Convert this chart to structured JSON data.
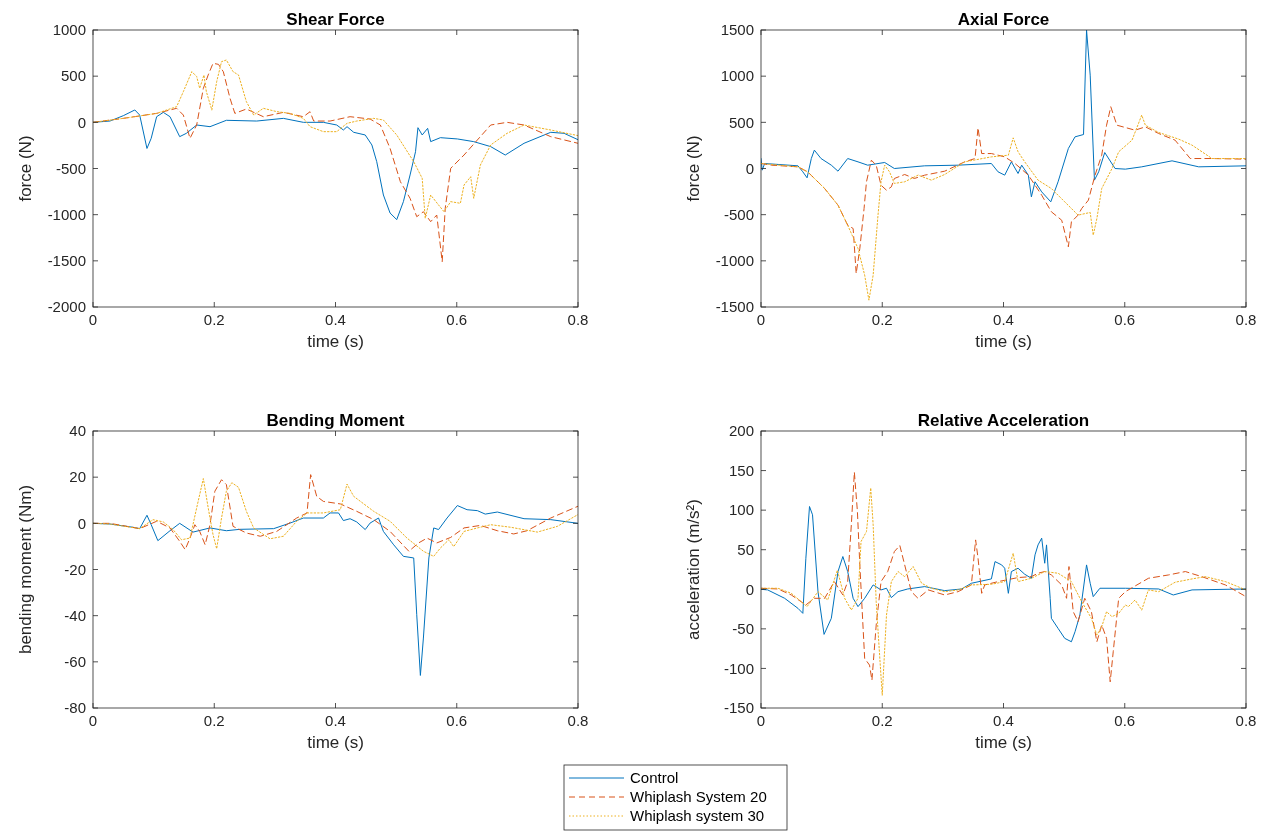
{
  "chart_data": [
    {
      "type": "line",
      "title": "Shear Force",
      "xlabel": "time (s)",
      "ylabel": "force (N)",
      "xlim": [
        0,
        0.8
      ],
      "xticks": [
        0,
        0.2,
        0.4,
        0.6,
        0.8
      ],
      "ylim": [
        -2000,
        1000
      ],
      "yticks": [
        -2000,
        -1500,
        -1000,
        -500,
        0,
        500,
        1000
      ],
      "series": [
        {
          "color": "#0072bd",
          "line_style": "solid",
          "x": [
            0,
            0.028,
            0.05,
            0.069,
            0.077,
            0.089,
            0.096,
            0.105,
            0.116,
            0.127,
            0.143,
            0.154,
            0.171,
            0.193,
            0.22,
            0.27,
            0.314,
            0.347,
            0.38,
            0.402,
            0.413,
            0.419,
            0.43,
            0.449,
            0.46,
            0.468,
            0.479,
            0.49,
            0.501,
            0.512,
            0.523,
            0.532,
            0.536,
            0.543,
            0.552,
            0.557,
            0.573,
            0.601,
            0.628,
            0.656,
            0.68,
            0.711,
            0.755,
            0.777,
            0.8
          ],
          "values": [
            0,
            14,
            72,
            134,
            79,
            -283,
            -173,
            61,
            108,
            61,
            -155,
            -119,
            -29,
            -47,
            22,
            14,
            43,
            0,
            0,
            -29,
            -83,
            -47,
            -108,
            -137,
            -245,
            -426,
            -787,
            -982,
            -1054,
            -859,
            -570,
            -318,
            -58,
            -137,
            -65,
            -209,
            -166,
            -180,
            -209,
            -263,
            -354,
            -227,
            -108,
            -119,
            -188
          ]
        },
        {
          "color": "#d95319",
          "line_style": "dashed",
          "x": [
            0,
            0.05,
            0.105,
            0.138,
            0.149,
            0.16,
            0.171,
            0.182,
            0.19,
            0.198,
            0.207,
            0.215,
            0.226,
            0.234,
            0.253,
            0.281,
            0.314,
            0.347,
            0.358,
            0.364,
            0.391,
            0.424,
            0.457,
            0.474,
            0.49,
            0.507,
            0.523,
            0.534,
            0.545,
            0.557,
            0.567,
            0.576,
            0.581,
            0.59,
            0.612,
            0.634,
            0.656,
            0.683,
            0.711,
            0.755,
            0.8
          ],
          "values": [
            0,
            43,
            97,
            152,
            79,
            -173,
            -29,
            368,
            513,
            639,
            628,
            548,
            260,
            97,
            144,
            61,
            108,
            61,
            115,
            14,
            14,
            61,
            36,
            -29,
            -282,
            -643,
            -823,
            -1022,
            -968,
            -1076,
            -1004,
            -1509,
            -931,
            -498,
            -354,
            -191,
            -29,
            0,
            -29,
            -155,
            -227
          ]
        },
        {
          "color": "#edb120",
          "line_style": "dotted",
          "x": [
            0,
            0.05,
            0.105,
            0.138,
            0.149,
            0.163,
            0.171,
            0.176,
            0.183,
            0.187,
            0.196,
            0.204,
            0.212,
            0.22,
            0.231,
            0.24,
            0.253,
            0.265,
            0.281,
            0.303,
            0.325,
            0.347,
            0.358,
            0.38,
            0.402,
            0.419,
            0.435,
            0.463,
            0.479,
            0.501,
            0.529,
            0.543,
            0.548,
            0.557,
            0.57,
            0.579,
            0.59,
            0.606,
            0.612,
            0.623,
            0.628,
            0.639,
            0.656,
            0.683,
            0.711,
            0.755,
            0.8
          ],
          "values": [
            0,
            43,
            97,
            170,
            332,
            549,
            496,
            368,
            512,
            332,
            134,
            440,
            657,
            675,
            549,
            513,
            224,
            79,
            152,
            116,
            97,
            43,
            -47,
            -101,
            -101,
            -11,
            14,
            43,
            25,
            -137,
            -426,
            -606,
            -1040,
            -787,
            -895,
            -968,
            -859,
            -877,
            -679,
            -589,
            -823,
            -462,
            -245,
            -119,
            -29,
            -83,
            -144
          ]
        }
      ]
    },
    {
      "type": "line",
      "title": "Axial Force",
      "xlabel": "time (s)",
      "ylabel": "force (N)",
      "xlim": [
        0,
        0.8
      ],
      "xticks": [
        0,
        0.2,
        0.4,
        0.6,
        0.8
      ],
      "ylim": [
        -1500,
        1500
      ],
      "yticks": [
        -1500,
        -1000,
        -500,
        0,
        500,
        1000,
        1500
      ],
      "series": [
        {
          "color": "#0072bd",
          "line_style": "solid",
          "x": [
            0,
            0.002,
            0.006,
            0.061,
            0.069,
            0.076,
            0.083,
            0.088,
            0.099,
            0.116,
            0.127,
            0.143,
            0.16,
            0.176,
            0.204,
            0.22,
            0.27,
            0.325,
            0.38,
            0.391,
            0.402,
            0.413,
            0.424,
            0.43,
            0.441,
            0.446,
            0.452,
            0.463,
            0.478,
            0.49,
            0.507,
            0.518,
            0.532,
            0.537,
            0.543,
            0.55,
            0.557,
            0.567,
            0.584,
            0.601,
            0.628,
            0.678,
            0.722,
            0.8
          ],
          "values": [
            108,
            -18,
            54,
            29,
            -36,
            -101,
            108,
            199,
            108,
            36,
            -29,
            108,
            72,
            36,
            65,
            0,
            29,
            36,
            54,
            -36,
            -72,
            72,
            -54,
            36,
            -72,
            -307,
            -144,
            -253,
            -361,
            -144,
            217,
            343,
            368,
            1498,
            1011,
            -126,
            -36,
            173,
            0,
            -7,
            18,
            83,
            18,
            29
          ]
        },
        {
          "color": "#d95319",
          "line_style": "dashed",
          "x": [
            0,
            0.017,
            0.061,
            0.077,
            0.105,
            0.127,
            0.143,
            0.152,
            0.157,
            0.163,
            0.17,
            0.174,
            0.182,
            0.19,
            0.198,
            0.207,
            0.215,
            0.22,
            0.237,
            0.253,
            0.27,
            0.303,
            0.336,
            0.353,
            0.358,
            0.364,
            0.38,
            0.402,
            0.419,
            0.441,
            0.463,
            0.479,
            0.496,
            0.507,
            0.512,
            0.523,
            0.529,
            0.54,
            0.551,
            0.562,
            0.57,
            0.577,
            0.587,
            0.617,
            0.634,
            0.656,
            0.683,
            0.708,
            0.744,
            0.8
          ],
          "values": [
            54,
            36,
            18,
            -36,
            -217,
            -397,
            -614,
            -650,
            -1137,
            -866,
            -433,
            -144,
            90,
            36,
            -181,
            -235,
            -199,
            -108,
            -65,
            -108,
            -72,
            -29,
            72,
            108,
            440,
            162,
            162,
            126,
            54,
            -72,
            -289,
            -469,
            -560,
            -848,
            -578,
            -505,
            -433,
            -343,
            -72,
            144,
            469,
            668,
            469,
            415,
            451,
            379,
            307,
            108,
            108,
            101
          ]
        },
        {
          "color": "#edb120",
          "line_style": "dotted",
          "x": [
            0,
            0.061,
            0.077,
            0.105,
            0.127,
            0.143,
            0.16,
            0.171,
            0.178,
            0.185,
            0.193,
            0.198,
            0.204,
            0.212,
            0.22,
            0.237,
            0.259,
            0.281,
            0.303,
            0.336,
            0.38,
            0.408,
            0.416,
            0.424,
            0.435,
            0.457,
            0.479,
            0.501,
            0.523,
            0.543,
            0.548,
            0.554,
            0.562,
            0.579,
            0.59,
            0.612,
            0.628,
            0.634,
            0.656,
            0.689,
            0.711,
            0.744,
            0.8
          ],
          "values": [
            54,
            18,
            -36,
            -217,
            -397,
            -614,
            -866,
            -1155,
            -1426,
            -1155,
            -505,
            -144,
            36,
            -36,
            -162,
            -144,
            -72,
            -126,
            -65,
            72,
            126,
            144,
            332,
            181,
            72,
            -126,
            -217,
            -361,
            -505,
            -476,
            -722,
            -542,
            -217,
            0,
            181,
            307,
            578,
            469,
            390,
            318,
            253,
            108,
            108
          ]
        }
      ]
    },
    {
      "type": "line",
      "title": "Bending Moment",
      "xlabel": "time (s)",
      "ylabel": "bending moment (Nm)",
      "xlim": [
        0,
        0.8
      ],
      "xticks": [
        0,
        0.2,
        0.4,
        0.6,
        0.8
      ],
      "ylim": [
        -80,
        40
      ],
      "yticks": [
        -80,
        -60,
        -40,
        -20,
        0,
        20,
        40
      ],
      "series": [
        {
          "color": "#0072bd",
          "line_style": "solid",
          "x": [
            0,
            0.028,
            0.066,
            0.077,
            0.089,
            0.096,
            0.107,
            0.127,
            0.143,
            0.165,
            0.193,
            0.22,
            0.242,
            0.298,
            0.325,
            0.347,
            0.38,
            0.391,
            0.405,
            0.413,
            0.424,
            0.435,
            0.449,
            0.457,
            0.471,
            0.479,
            0.496,
            0.512,
            0.529,
            0.534,
            0.54,
            0.545,
            0.554,
            0.562,
            0.57,
            0.584,
            0.601,
            0.617,
            0.634,
            0.647,
            0.667,
            0.711,
            0.755,
            0.8
          ],
          "values": [
            0,
            -0.3,
            -1.7,
            -2.3,
            3.5,
            -0.6,
            -7.5,
            -3.2,
            0,
            -3.8,
            -2,
            -3.2,
            -2.6,
            -2.3,
            0.1,
            2.3,
            2.3,
            4.5,
            4.5,
            1.2,
            2,
            0.6,
            -2.7,
            0.1,
            2.3,
            -3.5,
            -9.3,
            -14.3,
            -15,
            -39.6,
            -65.9,
            -49.7,
            -15,
            -2,
            -2.7,
            2.3,
            7.7,
            5.9,
            5.5,
            4,
            4.9,
            2,
            1.6,
            0
          ]
        },
        {
          "color": "#d95319",
          "line_style": "dashed",
          "x": [
            0,
            0.028,
            0.077,
            0.105,
            0.127,
            0.143,
            0.152,
            0.16,
            0.168,
            0.176,
            0.185,
            0.193,
            0.201,
            0.212,
            0.22,
            0.231,
            0.253,
            0.276,
            0.303,
            0.336,
            0.353,
            0.359,
            0.369,
            0.38,
            0.408,
            0.435,
            0.463,
            0.49,
            0.521,
            0.537,
            0.551,
            0.567,
            0.59,
            0.612,
            0.639,
            0.667,
            0.694,
            0.716,
            0.755,
            0.8
          ],
          "values": [
            0,
            0,
            -2.3,
            0.9,
            -2,
            -7.8,
            -11.4,
            -6.4,
            -0.6,
            -3.5,
            -9.3,
            -0.6,
            13.9,
            18.9,
            16.8,
            -1.3,
            -4.2,
            -5.6,
            -3.5,
            2.3,
            4.5,
            21.1,
            11.7,
            9.5,
            8.4,
            5.2,
            1.6,
            -3.5,
            -12.1,
            -8.5,
            -6.4,
            -8.5,
            -6.1,
            -2,
            -0.9,
            -3.2,
            -4.6,
            -3.2,
            2.3,
            7.4
          ]
        },
        {
          "color": "#edb120",
          "line_style": "dotted",
          "x": [
            0,
            0.028,
            0.077,
            0.099,
            0.116,
            0.132,
            0.146,
            0.16,
            0.171,
            0.182,
            0.19,
            0.198,
            0.204,
            0.212,
            0.22,
            0.229,
            0.24,
            0.253,
            0.265,
            0.292,
            0.314,
            0.336,
            0.353,
            0.38,
            0.408,
            0.419,
            0.43,
            0.463,
            0.49,
            0.518,
            0.545,
            0.562,
            0.573,
            0.587,
            0.595,
            0.612,
            0.634,
            0.656,
            0.689,
            0.733,
            0.766,
            0.8
          ],
          "values": [
            0,
            -0.3,
            -2.3,
            1.6,
            0.6,
            -2.7,
            -7.1,
            -6.4,
            6.7,
            19.4,
            6.7,
            -4.9,
            -11,
            2.3,
            13.9,
            17.6,
            15.6,
            5.2,
            -2,
            -6.7,
            -5.6,
            0.9,
            4.5,
            4.5,
            5.9,
            17,
            11.7,
            5.2,
            0.9,
            -6.4,
            -12.1,
            -14.3,
            -10.7,
            -7.1,
            -10.1,
            -3.5,
            -2,
            -0.6,
            -1.7,
            -3.8,
            -1.3,
            3.8
          ]
        }
      ]
    },
    {
      "type": "line",
      "title": "Relative Acceleration",
      "xlabel": "time (s)",
      "ylabel": "acceleration (m/s²)",
      "xlim": [
        0,
        0.8
      ],
      "xticks": [
        0,
        0.2,
        0.4,
        0.6,
        0.8
      ],
      "ylim": [
        -150,
        200
      ],
      "yticks": [
        -150,
        -100,
        -50,
        0,
        50,
        100,
        150,
        200
      ],
      "legend": "bottom",
      "series": [
        {
          "name": "Control",
          "color": "#0072bd",
          "line_style": "solid",
          "x": [
            0,
            0.011,
            0.039,
            0.061,
            0.069,
            0.074,
            0.08,
            0.085,
            0.094,
            0.104,
            0.116,
            0.127,
            0.135,
            0.143,
            0.152,
            0.16,
            0.171,
            0.185,
            0.198,
            0.207,
            0.215,
            0.226,
            0.242,
            0.27,
            0.303,
            0.331,
            0.347,
            0.38,
            0.386,
            0.397,
            0.402,
            0.408,
            0.413,
            0.424,
            0.435,
            0.446,
            0.452,
            0.457,
            0.463,
            0.468,
            0.471,
            0.477,
            0.479,
            0.49,
            0.501,
            0.512,
            0.518,
            0.526,
            0.537,
            0.543,
            0.548,
            0.559,
            0.601,
            0.656,
            0.68,
            0.711,
            0.8
          ],
          "values": [
            0,
            -0.8,
            -11.4,
            -24.1,
            -30.4,
            39.2,
            104.6,
            94.1,
            -3,
            -57,
            -36.7,
            22.4,
            41.4,
            22.4,
            -11.4,
            -21.9,
            -11.4,
            5.5,
            -0.8,
            1.3,
            -10.5,
            -3,
            0.4,
            3.4,
            -1.7,
            0.4,
            7.6,
            13.1,
            35,
            30.8,
            26.6,
            -5.1,
            22.4,
            26.6,
            19,
            13.9,
            43.5,
            56.1,
            64.6,
            32.9,
            56.1,
            -11.4,
            -36.7,
            -49.4,
            -62,
            -66.3,
            -53.6,
            -32.5,
            30.8,
            7.6,
            -9.3,
            1.3,
            1.3,
            0.4,
            -7.2,
            -0.8,
            0.4
          ]
        },
        {
          "name": "Whiplash System 20",
          "color": "#d95319",
          "line_style": "dashed",
          "x": [
            0,
            0.028,
            0.05,
            0.074,
            0.088,
            0.105,
            0.121,
            0.135,
            0.143,
            0.149,
            0.154,
            0.159,
            0.163,
            0.171,
            0.179,
            0.183,
            0.19,
            0.198,
            0.209,
            0.22,
            0.229,
            0.237,
            0.248,
            0.259,
            0.276,
            0.303,
            0.325,
            0.347,
            0.354,
            0.358,
            0.364,
            0.369,
            0.391,
            0.424,
            0.446,
            0.457,
            0.468,
            0.479,
            0.496,
            0.504,
            0.508,
            0.515,
            0.523,
            0.534,
            0.545,
            0.554,
            0.562,
            0.57,
            0.576,
            0.581,
            0.59,
            0.601,
            0.639,
            0.672,
            0.7,
            0.727,
            0.766,
            0.8
          ],
          "values": [
            1.3,
            0.4,
            -7.2,
            -19.8,
            -11.4,
            -11.4,
            9.7,
            -7.2,
            9.7,
            81.5,
            148,
            98.6,
            31,
            -87.4,
            -95.8,
            -114.8,
            -45.2,
            9.7,
            22.4,
            47.7,
            55.3,
            30.8,
            -3,
            -11.4,
            -0.8,
            -7.2,
            -3,
            5.5,
            62.4,
            39.2,
            -5.1,
            5.5,
            9.7,
            14.8,
            16,
            20.3,
            22.4,
            18.1,
            5.5,
            -11.4,
            28.7,
            -28.3,
            -40.9,
            -11.4,
            -28.3,
            -66.3,
            -45.2,
            -62,
            -116.9,
            -78.9,
            -11.4,
            -3,
            13.9,
            18.1,
            22.4,
            16,
            5.5,
            -9.3
          ]
        },
        {
          "name": "Whiplash system 30",
          "color": "#edb120",
          "line_style": "dotted",
          "x": [
            0,
            0.028,
            0.05,
            0.076,
            0.094,
            0.11,
            0.126,
            0.138,
            0.149,
            0.16,
            0.165,
            0.174,
            0.181,
            0.185,
            0.19,
            0.196,
            0.2,
            0.207,
            0.215,
            0.226,
            0.237,
            0.251,
            0.265,
            0.281,
            0.303,
            0.325,
            0.347,
            0.38,
            0.402,
            0.416,
            0.424,
            0.446,
            0.468,
            0.49,
            0.512,
            0.529,
            0.545,
            0.554,
            0.562,
            0.57,
            0.579,
            0.59,
            0.601,
            0.606,
            0.617,
            0.628,
            0.639,
            0.656,
            0.683,
            0.711,
            0.733,
            0.766,
            0.8
          ],
          "values": [
            1.3,
            1.3,
            -5.1,
            -21.9,
            -3,
            -13.5,
            24.1,
            -11.4,
            -26.2,
            -11.4,
            60.3,
            73,
            128,
            81.5,
            -15.6,
            -87.4,
            -133.8,
            -32.5,
            9.7,
            22.4,
            16,
            28.7,
            7.6,
            1.3,
            -3,
            -0.8,
            5.5,
            6.3,
            9.7,
            45.6,
            9.7,
            13.9,
            22.4,
            20.3,
            9.7,
            -15.6,
            -36.7,
            -57.8,
            -47.3,
            -28.3,
            -34.6,
            -30.4,
            -19.8,
            -21.9,
            -13.5,
            -26.2,
            -0.8,
            -3,
            8.9,
            13.1,
            16,
            9.7,
            -0.8
          ]
        }
      ]
    }
  ]
}
